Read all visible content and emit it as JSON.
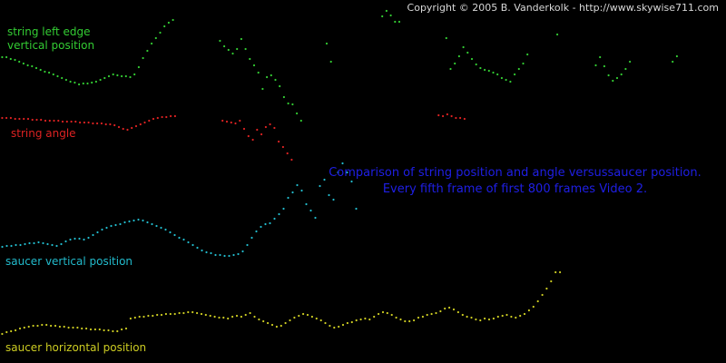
{
  "copyright": "Copyright © 2005 B. Vanderkolk - http://www.skywise711.com",
  "caption": {
    "line1": "Comparison of string position and angle versussaucer position.",
    "line2": "Every fifth frame of first 800 frames Video 2."
  },
  "labels": {
    "string_left_edge_line1": "string left edge",
    "string_left_edge_line2": "vertical position",
    "string_angle": "string angle",
    "saucer_vertical": "saucer vertical position",
    "saucer_horizontal": "saucer horizontal position"
  },
  "colors": {
    "background": "#000000",
    "string_left_edge": "#33cc33",
    "string_angle": "#dd2222",
    "saucer_vertical": "#22bbcc",
    "saucer_horizontal": "#cccc22",
    "caption": "#1f1fe6"
  },
  "chart_data": {
    "type": "scatter",
    "x_range": [
      0,
      800
    ],
    "grid": false,
    "series": [
      {
        "name": "string left edge vertical position",
        "color": "#33cc33",
        "values": [
          63,
          63,
          65,
          66,
          68,
          70,
          72,
          73,
          75,
          77,
          79,
          80,
          82,
          84,
          86,
          88,
          90,
          91,
          93,
          92,
          92,
          91,
          90,
          88,
          86,
          84,
          82,
          83,
          84,
          84,
          85,
          82,
          74,
          64,
          56,
          48,
          42,
          36,
          29,
          25,
          22,
          null,
          null,
          null,
          null,
          null,
          null,
          null,
          null,
          null,
          null,
          45,
          51,
          55,
          59,
          54,
          43,
          54,
          65,
          72,
          80,
          98,
          85,
          83,
          88,
          95,
          107,
          114,
          115,
          125,
          133,
          null,
          null,
          null,
          null,
          null,
          48,
          68,
          null,
          null,
          null,
          null,
          null,
          null,
          null,
          null,
          null,
          null,
          null,
          18,
          12,
          17,
          24,
          24,
          null,
          null,
          null,
          null,
          null,
          null,
          null,
          null,
          null,
          null,
          42,
          76,
          70,
          62,
          52,
          58,
          65,
          71,
          75,
          77,
          78,
          80,
          82,
          86,
          88,
          90,
          82,
          76,
          70,
          60,
          null,
          null,
          null,
          null,
          null,
          null,
          38,
          null,
          null,
          null,
          null,
          null,
          null,
          null,
          null,
          72,
          63,
          73,
          83,
          89,
          86,
          82,
          76,
          68,
          null,
          null,
          null,
          null,
          null,
          null,
          null,
          null,
          null,
          68,
          62,
          null,
          null,
          null,
          null,
          null,
          null,
          null,
          null,
          null,
          null,
          null
        ]
      },
      {
        "name": "string angle",
        "color": "#dd2222",
        "values": [
          130,
          130,
          130,
          131,
          131,
          131,
          131,
          132,
          132,
          132,
          133,
          133,
          133,
          133,
          134,
          134,
          134,
          134,
          135,
          135,
          135,
          136,
          136,
          136,
          137,
          137,
          138,
          140,
          142,
          143,
          141,
          139,
          137,
          135,
          133,
          131,
          130,
          129,
          129,
          128,
          128,
          null,
          null,
          null,
          null,
          null,
          null,
          null,
          null,
          null,
          null,
          133,
          134,
          135,
          136,
          133,
          142,
          150,
          154,
          143,
          148,
          140,
          137,
          141,
          156,
          162,
          169,
          176,
          null,
          null,
          null,
          null,
          null,
          null,
          null,
          null,
          null,
          null,
          null,
          null,
          null,
          null,
          null,
          null,
          null,
          null,
          null,
          null,
          null,
          null,
          null,
          null,
          null,
          null,
          null,
          null,
          null,
          null,
          null,
          null,
          null,
          127,
          128,
          126,
          128,
          130,
          130,
          131,
          null,
          null,
          null,
          null,
          null,
          null,
          null,
          null,
          null,
          null,
          null,
          null,
          null,
          null,
          null,
          null,
          null,
          null,
          null,
          null,
          null,
          null,
          null,
          null,
          null,
          null,
          null,
          null,
          null,
          null,
          null,
          null,
          null,
          null,
          null,
          null,
          null,
          null,
          null,
          null,
          null,
          null,
          null,
          null,
          null,
          null,
          null,
          null,
          null,
          null,
          null,
          null,
          null,
          null,
          null,
          null,
          null,
          null,
          null,
          null
        ]
      },
      {
        "name": "saucer vertical position",
        "color": "#22bbcc",
        "values": [
          272,
          271,
          271,
          270,
          270,
          269,
          268,
          268,
          267,
          268,
          269,
          270,
          271,
          269,
          266,
          264,
          263,
          263,
          264,
          262,
          259,
          256,
          253,
          251,
          249,
          248,
          247,
          245,
          244,
          243,
          242,
          243,
          245,
          247,
          249,
          251,
          253,
          256,
          259,
          262,
          264,
          267,
          270,
          273,
          276,
          278,
          279,
          281,
          281,
          282,
          282,
          281,
          280,
          277,
          270,
          262,
          255,
          250,
          247,
          246,
          241,
          236,
          230,
          218,
          212,
          204,
          210,
          225,
          232,
          240,
          205,
          198,
          215,
          220,
          190,
          180,
          190,
          200,
          230,
          null,
          null,
          null,
          null,
          null,
          null,
          null,
          null,
          null,
          null,
          null,
          null,
          null,
          null,
          null,
          null,
          null,
          null,
          null,
          null,
          null,
          null,
          null,
          null,
          null,
          null,
          null,
          null,
          null,
          null,
          null,
          null,
          null,
          null,
          null,
          null,
          null,
          null,
          null,
          null,
          null,
          null,
          null,
          null,
          null,
          null,
          null,
          null,
          null,
          null,
          null,
          null,
          null,
          null,
          null,
          null,
          null,
          null,
          null,
          null,
          null,
          null,
          null,
          null,
          null,
          null,
          null,
          null,
          null,
          null,
          null,
          null,
          null,
          null,
          null,
          null,
          null,
          null,
          null,
          null,
          null
        ]
      },
      {
        "name": "saucer horizontal position",
        "color": "#cccc22",
        "values": [
          368,
          366,
          365,
          364,
          362,
          361,
          360,
          359,
          359,
          358,
          358,
          359,
          359,
          360,
          360,
          361,
          361,
          361,
          362,
          362,
          363,
          363,
          363,
          364,
          364,
          365,
          365,
          363,
          362,
          351,
          350,
          349,
          349,
          348,
          348,
          347,
          347,
          346,
          346,
          346,
          345,
          345,
          344,
          344,
          345,
          346,
          347,
          348,
          349,
          350,
          350,
          351,
          349,
          348,
          349,
          347,
          345,
          349,
          352,
          354,
          356,
          358,
          360,
          359,
          356,
          353,
          350,
          348,
          346,
          347,
          349,
          351,
          353,
          356,
          359,
          361,
          360,
          358,
          356,
          355,
          353,
          352,
          351,
          352,
          349,
          346,
          344,
          345,
          347,
          350,
          352,
          354,
          354,
          353,
          350,
          349,
          347,
          346,
          345,
          343,
          340,
          339,
          341,
          344,
          347,
          349,
          350,
          352,
          353,
          351,
          352,
          351,
          349,
          348,
          347,
          349,
          350,
          348,
          346,
          342,
          338,
          332,
          325,
          318,
          310,
          300,
          300,
          null,
          null,
          null,
          null,
          null,
          null,
          null,
          null,
          null,
          null,
          null,
          null,
          null,
          null,
          null,
          null,
          null,
          null,
          null,
          null,
          null,
          null,
          null,
          null,
          null,
          null,
          null,
          null,
          null,
          null,
          null,
          null,
          null,
          null,
          null,
          null,
          null
        ]
      }
    ]
  }
}
